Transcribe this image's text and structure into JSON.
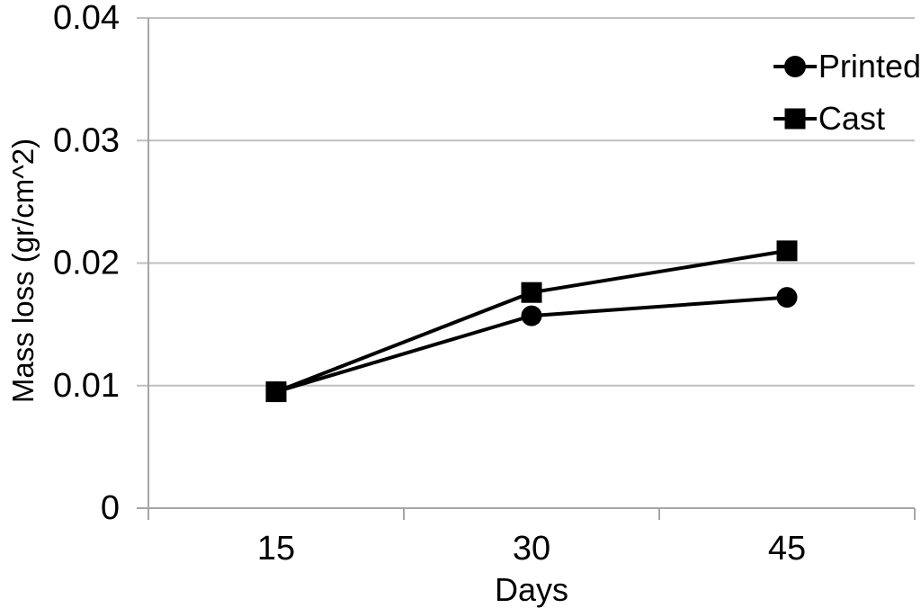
{
  "chart_data": {
    "type": "line",
    "title": "",
    "xlabel": "Days",
    "ylabel": "Mass loss (gr/cm^2)",
    "x": [
      15,
      30,
      45
    ],
    "x_tick_labels": [
      "15",
      "30",
      "45"
    ],
    "y_ticks": [
      0,
      0.01,
      0.02,
      0.03,
      0.04
    ],
    "y_tick_labels": [
      "0",
      "0.01",
      "0.02",
      "0.03",
      "0.04"
    ],
    "ylim": [
      0,
      0.04
    ],
    "grid": "horizontal",
    "legend_position": "top-right",
    "series": [
      {
        "name": "Printed",
        "marker": "circle",
        "color": "#000000",
        "values": [
          0.0095,
          0.0157,
          0.0172
        ]
      },
      {
        "name": "Cast",
        "marker": "square",
        "color": "#000000",
        "values": [
          0.0095,
          0.0176,
          0.021
        ]
      }
    ]
  },
  "colors": {
    "background": "#ffffff",
    "gridline": "#bfbfbf",
    "axis": "#a6a6a6",
    "text": "#000000",
    "series": "#000000"
  }
}
